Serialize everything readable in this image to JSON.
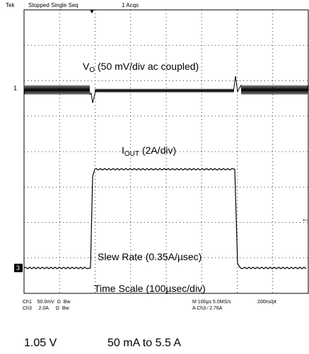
{
  "status": {
    "brand": "Tek",
    "run_state": "Stopped Single Seq",
    "acqs": "1 Acqs"
  },
  "annotations": {
    "vo_main": "V",
    "vo_sub": "O",
    "vo_rest": " (50 mV/div ac coupled)",
    "iout_main": "I",
    "iout_sub": "OUT",
    "iout_rest": " (2A/div)",
    "slew": "Slew Rate (0.35A/µsec)",
    "timescale": "Time Scale (100µsec/div)"
  },
  "markers": {
    "ch1": "1",
    "ch3": "3",
    "arrow": "←"
  },
  "footer": {
    "ch1_name": "Ch1",
    "ch1_scale": "50.0mV",
    "ch1_imp": "Ω",
    "ch1_bw": "Bw",
    "ch3_name": "Ch3",
    "ch3_scale": "2.0A",
    "ch3_imp": "Ω",
    "ch3_bw": "Bw",
    "timebase": "M 100µs 5.0MS/s",
    "trigger": "A Ch3 ∕ 2.76A",
    "rate": "200ns/pt"
  },
  "bottom": {
    "voltage": "1.05 V",
    "current_range": "50 mA to 5.5 A"
  },
  "colors": {
    "trace": "#000000",
    "grid": "#000000",
    "background": "#ffffff"
  }
}
